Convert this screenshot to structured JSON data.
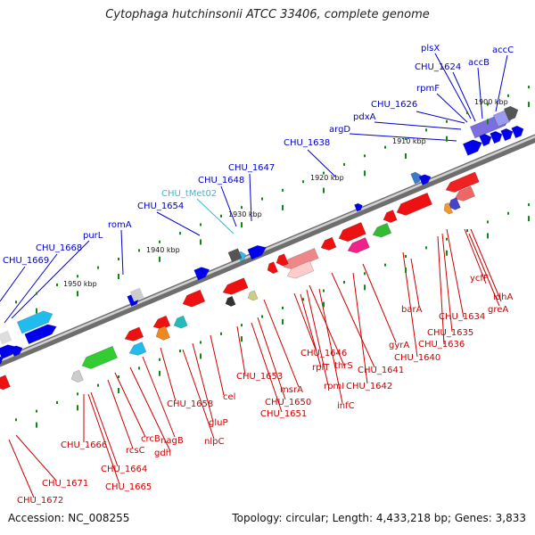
{
  "title": "Cytophaga hutchinsonii ATCC 33406, complete genome",
  "accession": "Accession: NC_008255",
  "topology": "Topology: circular; Length: 4,433,218 bp; Genes: 3,833",
  "colors": {
    "label_top": "#0000cc",
    "label_trna": "#33bbdd",
    "label_bottom": "#cc0000",
    "backbone": "#888888",
    "tick": "#118811"
  },
  "scale": {
    "unit": "kbp",
    "ticks": [
      "1900 kbp",
      "1910 kbp",
      "1920 kbp",
      "1930 kbp",
      "1940 kbp",
      "1950 kbp"
    ]
  },
  "top_labels": [
    "plsX",
    "CHU_1624",
    "accB",
    "accC",
    "rpmF",
    "CHU_1626",
    "pdxA",
    "argD",
    "CHU_1638",
    "CHU_1647",
    "CHU_1648",
    "CHU_tMet02",
    "CHU_1654",
    "romA",
    "purL",
    "CHU_1668",
    "CHU_1669"
  ],
  "bottom_labels": [
    "ycfF",
    "ldhA",
    "greA",
    "CHU_1634",
    "CHU_1635",
    "CHU_1636",
    "barA",
    "CHU_1640",
    "gyrA",
    "CHU_1641",
    "CHU_1642",
    "CHU_1646",
    "thrS",
    "rplT",
    "rpmI",
    "infC",
    "msrA",
    "CHU_1650",
    "CHU_1651",
    "CHU_1653",
    "cel",
    "gluP",
    "nlpC",
    "CHU_1658",
    "nagB",
    "gdh",
    "crcB",
    "rcsC",
    "CHU_1666",
    "CHU_1664",
    "CHU_1665",
    "CHU_1671",
    "CHU_1672"
  ]
}
